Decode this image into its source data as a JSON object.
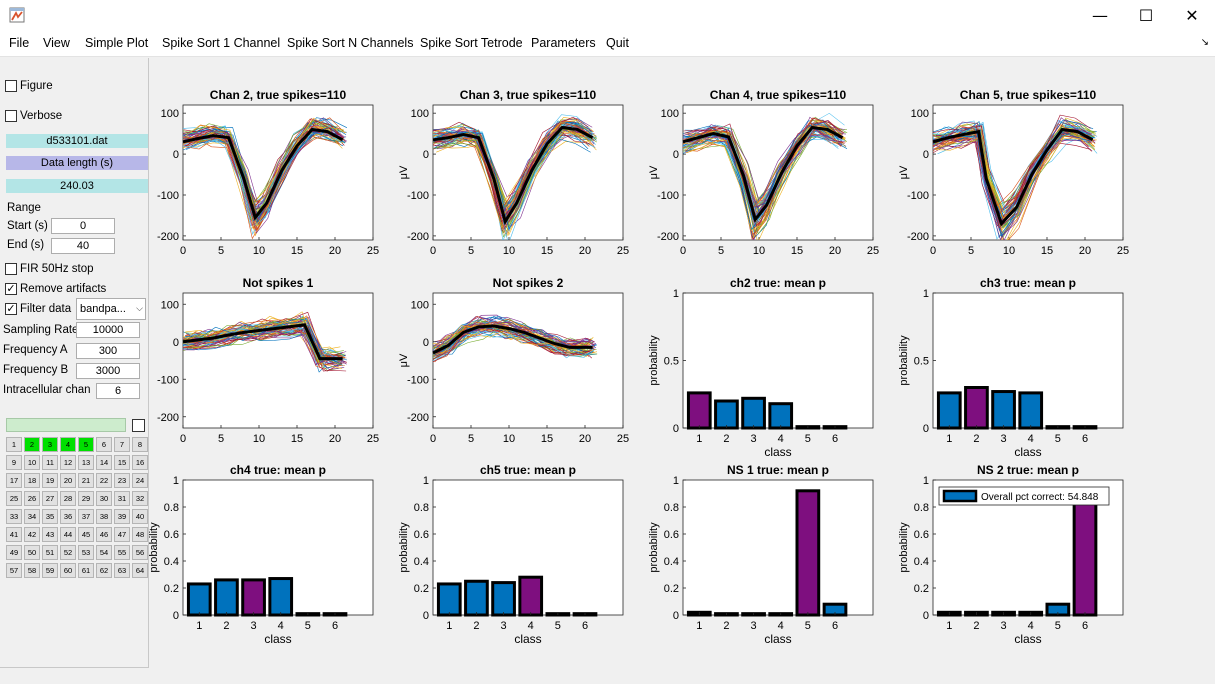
{
  "window": {
    "controls": {
      "minimize": "—",
      "maximize": "☐",
      "close": "✕"
    },
    "icon": "matlab-figure-icon"
  },
  "menu": [
    "File",
    "View",
    "Simple Plot",
    "Spike Sort 1 Channel",
    "Spike Sort N Channels",
    "Spike Sort Tetrode",
    "Parameters",
    "Quit"
  ],
  "panel": {
    "figure_label": "Figure",
    "figure_checked": false,
    "verbose_label": "Verbose",
    "verbose_checked": false,
    "filename": "d533101.dat",
    "data_length_label": "Data length (s)",
    "data_length_value": "240.03",
    "range_label": "Range",
    "start_label": "Start (s)",
    "start_value": "0",
    "end_label": "End (s)",
    "end_value": "40",
    "fir_label": "FIR 50Hz stop",
    "fir_checked": false,
    "remove_artifacts_label": "Remove artifacts",
    "remove_artifacts_checked": true,
    "filter_label": "Filter data",
    "filter_checked": true,
    "filter_type": "bandpa...",
    "sampling_rate_label": "Sampling Rate",
    "sampling_rate_value": "10000",
    "freq_a_label": "Frequency A",
    "freq_a_value": "300",
    "freq_b_label": "Frequency B",
    "freq_b_value": "3000",
    "intracellular_label": "Intracellular chan",
    "intracellular_value": "6",
    "channel_count": 64,
    "active_channels": [
      2,
      3,
      4,
      5
    ]
  },
  "colors": {
    "bar_blue": "#0072bd",
    "bar_purple": "#7e0f7f",
    "file_box": "#b3e5e6",
    "length_box": "#b7b7e8",
    "active_channel": "#00e000"
  },
  "chart_data": [
    {
      "id": "wave-chan2",
      "type": "line",
      "title": "Chan 2, true spikes=110",
      "ylabel": "",
      "xlim": [
        0,
        25
      ],
      "ylim": [
        -210,
        120
      ],
      "xticks": [
        0,
        5,
        10,
        15,
        20,
        25
      ],
      "yticks": [
        -200,
        -100,
        0,
        100
      ],
      "mean": {
        "x": [
          0,
          2,
          4,
          6,
          8,
          9.5,
          11,
          13,
          15,
          17,
          19,
          21
        ],
        "y": [
          30,
          38,
          45,
          40,
          -60,
          -155,
          -120,
          -40,
          20,
          60,
          55,
          35
        ]
      }
    },
    {
      "id": "wave-chan3",
      "type": "line",
      "title": "Chan 3, true spikes=110",
      "ylabel": "μV",
      "xlim": [
        0,
        25
      ],
      "ylim": [
        -210,
        120
      ],
      "xticks": [
        0,
        5,
        10,
        15,
        20,
        25
      ],
      "yticks": [
        -200,
        -100,
        0,
        100
      ],
      "mean": {
        "x": [
          0,
          2,
          4,
          6,
          8,
          9.5,
          11,
          13,
          15,
          17,
          19,
          21
        ],
        "y": [
          35,
          40,
          48,
          40,
          -60,
          -165,
          -120,
          -40,
          25,
          65,
          60,
          40
        ]
      }
    },
    {
      "id": "wave-chan4",
      "type": "line",
      "title": "Chan 4, true spikes=110",
      "ylabel": "μV",
      "xlim": [
        0,
        25
      ],
      "ylim": [
        -210,
        120
      ],
      "xticks": [
        0,
        5,
        10,
        15,
        20,
        25
      ],
      "yticks": [
        -200,
        -100,
        0,
        100
      ],
      "mean": {
        "x": [
          0,
          2,
          4,
          6,
          8,
          9.5,
          11,
          13,
          15,
          17,
          19,
          21
        ],
        "y": [
          30,
          40,
          50,
          42,
          -55,
          -160,
          -125,
          -45,
          20,
          65,
          60,
          40
        ]
      }
    },
    {
      "id": "wave-chan5",
      "type": "line",
      "title": "Chan 5, true spikes=110",
      "ylabel": "μV",
      "xlim": [
        0,
        25
      ],
      "ylim": [
        -210,
        120
      ],
      "xticks": [
        0,
        5,
        10,
        15,
        20,
        25
      ],
      "yticks": [
        -200,
        -100,
        0,
        100
      ],
      "mean": {
        "x": [
          0,
          2,
          4,
          6,
          7,
          9,
          11,
          13,
          15,
          17,
          19,
          21
        ],
        "y": [
          30,
          40,
          48,
          55,
          -60,
          -170,
          -130,
          -50,
          10,
          60,
          55,
          35
        ]
      }
    },
    {
      "id": "wave-ns1",
      "type": "line",
      "title": "Not spikes 1",
      "ylabel": "",
      "xlim": [
        0,
        25
      ],
      "ylim": [
        -230,
        130
      ],
      "xticks": [
        0,
        5,
        10,
        15,
        20,
        25
      ],
      "yticks": [
        -200,
        -100,
        0,
        100
      ],
      "mean": {
        "x": [
          0,
          2,
          4,
          6,
          8,
          10,
          12,
          14,
          16,
          18,
          19,
          21
        ],
        "y": [
          0,
          5,
          10,
          18,
          25,
          30,
          35,
          40,
          45,
          -45,
          -45,
          -45
        ]
      }
    },
    {
      "id": "wave-ns2",
      "type": "line",
      "title": "Not spikes 2",
      "ylabel": "μV",
      "xlim": [
        0,
        25
      ],
      "ylim": [
        -230,
        130
      ],
      "xticks": [
        0,
        5,
        10,
        15,
        20,
        25
      ],
      "yticks": [
        -200,
        -100,
        0,
        100
      ],
      "mean": {
        "x": [
          0,
          2,
          4,
          6,
          8,
          10,
          12,
          14,
          16,
          18,
          20,
          21
        ],
        "y": [
          -30,
          -10,
          25,
          40,
          42,
          35,
          25,
          10,
          -5,
          -15,
          -15,
          -15
        ]
      }
    },
    {
      "id": "bar-ch2",
      "type": "bar",
      "title": "ch2 true: mean p",
      "xlabel": "class",
      "ylabel": "probability",
      "ylim": [
        0,
        1
      ],
      "yticks": [
        0,
        0.5,
        1
      ],
      "categories": [
        "1",
        "2",
        "3",
        "4",
        "5",
        "6"
      ],
      "values": [
        0.26,
        0.2,
        0.22,
        0.18,
        0.01,
        0.01
      ],
      "highlight": 1
    },
    {
      "id": "bar-ch3",
      "type": "bar",
      "title": "ch3 true: mean p",
      "xlabel": "class",
      "ylabel": "probability",
      "ylim": [
        0,
        1
      ],
      "yticks": [
        0,
        0.5,
        1
      ],
      "categories": [
        "1",
        "2",
        "3",
        "4",
        "5",
        "6"
      ],
      "values": [
        0.26,
        0.3,
        0.27,
        0.26,
        0.01,
        0.01
      ],
      "highlight": 2
    },
    {
      "id": "bar-ch4",
      "type": "bar",
      "title": "ch4 true: mean p",
      "xlabel": "class",
      "ylabel": "probability",
      "ylim": [
        0,
        1
      ],
      "yticks": [
        0,
        0.2,
        0.4,
        0.6,
        0.8,
        1
      ],
      "categories": [
        "1",
        "2",
        "3",
        "4",
        "5",
        "6"
      ],
      "values": [
        0.23,
        0.26,
        0.26,
        0.27,
        0.01,
        0.01
      ],
      "highlight": 3
    },
    {
      "id": "bar-ch5",
      "type": "bar",
      "title": "ch5 true: mean p",
      "xlabel": "class",
      "ylabel": "probability",
      "ylim": [
        0,
        1
      ],
      "yticks": [
        0,
        0.2,
        0.4,
        0.6,
        0.8,
        1
      ],
      "categories": [
        "1",
        "2",
        "3",
        "4",
        "5",
        "6"
      ],
      "values": [
        0.23,
        0.25,
        0.24,
        0.28,
        0.01,
        0.01
      ],
      "highlight": 4
    },
    {
      "id": "bar-ns1",
      "type": "bar",
      "title": "NS 1 true: mean p",
      "xlabel": "class",
      "ylabel": "probability",
      "ylim": [
        0,
        1
      ],
      "yticks": [
        0,
        0.2,
        0.4,
        0.6,
        0.8,
        1
      ],
      "categories": [
        "1",
        "2",
        "3",
        "4",
        "5",
        "6"
      ],
      "values": [
        0.02,
        0.01,
        0.01,
        0.01,
        0.92,
        0.08
      ],
      "highlight": 5
    },
    {
      "id": "bar-ns2",
      "type": "bar",
      "title": "NS 2 true: mean p",
      "xlabel": "class",
      "ylabel": "probability",
      "ylim": [
        0,
        1
      ],
      "yticks": [
        0,
        0.2,
        0.4,
        0.6,
        0.8,
        1
      ],
      "categories": [
        "1",
        "2",
        "3",
        "4",
        "5",
        "6"
      ],
      "values": [
        0.02,
        0.02,
        0.02,
        0.02,
        0.08,
        0.85
      ],
      "highlight": 6,
      "legend": "Overall pct correct: 54.848"
    }
  ]
}
